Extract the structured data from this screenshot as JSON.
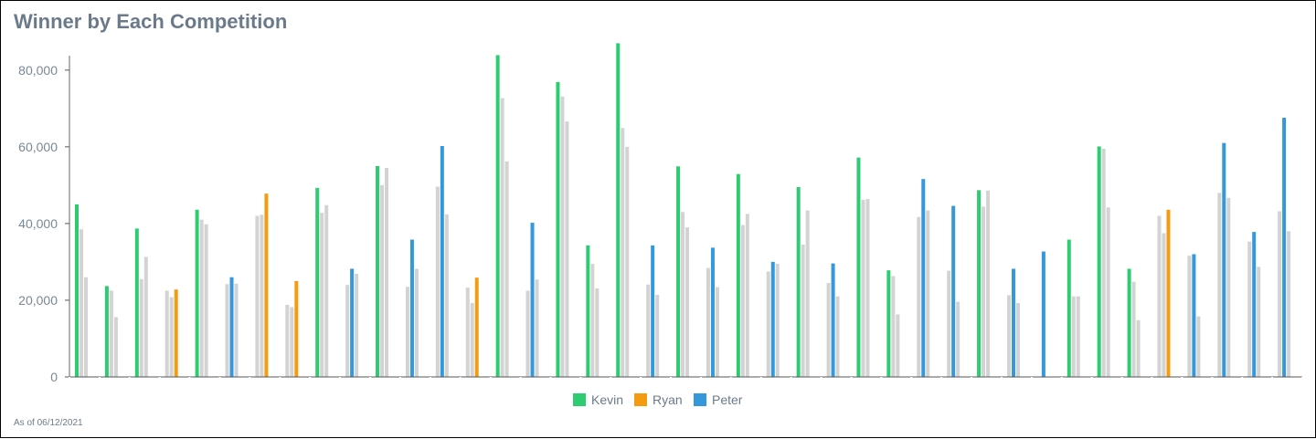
{
  "title": "Winner by Each Competition",
  "footnote": "As of 06/12/2021",
  "chart_data": {
    "type": "bar",
    "title": "Winner by Each Competition",
    "ylim": [
      0,
      90000
    ],
    "y_ticks": [
      0,
      20000,
      40000,
      60000,
      80000
    ],
    "y_tick_labels": [
      "0",
      "20,000",
      "40,000",
      "60,000",
      "80,000"
    ],
    "grid": false,
    "legend_position": "bottom-center",
    "legend": [
      {
        "name": "Kevin",
        "color": "#2ecc71"
      },
      {
        "name": "Ryan",
        "color": "#f39c12"
      },
      {
        "name": "Peter",
        "color": "#3498db"
      }
    ],
    "others_color": "#d3d3d3",
    "groups": [
      {
        "values": [
          45000,
          38500,
          26000
        ],
        "winner": "Kevin"
      },
      {
        "values": [
          23700,
          22500,
          15600
        ],
        "winner": "Kevin"
      },
      {
        "values": [
          38700,
          25500,
          31300
        ],
        "winner": "Kevin"
      },
      {
        "values": [
          22500,
          20800,
          22800
        ],
        "winner": "Ryan"
      },
      {
        "values": [
          43600,
          41000,
          39800
        ],
        "winner": "Kevin"
      },
      {
        "values": [
          24200,
          26000,
          24300
        ],
        "winner": "Peter"
      },
      {
        "values": [
          42000,
          42300,
          47800
        ],
        "winner": "Ryan"
      },
      {
        "values": [
          18800,
          18200,
          25000
        ],
        "winner": "Ryan"
      },
      {
        "values": [
          49300,
          42800,
          44800
        ],
        "winner": "Kevin"
      },
      {
        "values": [
          24000,
          28200,
          26900
        ],
        "winner": "Peter"
      },
      {
        "values": [
          55000,
          50000,
          54500
        ],
        "winner": "Kevin"
      },
      {
        "values": [
          23500,
          35800,
          28200
        ],
        "winner": "Peter"
      },
      {
        "values": [
          49600,
          60200,
          42400
        ],
        "winner": "Peter"
      },
      {
        "values": [
          23300,
          19300,
          25900
        ],
        "winner": "Ryan"
      },
      {
        "values": [
          83900,
          72700,
          56200
        ],
        "winner": "Kevin"
      },
      {
        "values": [
          22500,
          40200,
          25400
        ],
        "winner": "Peter"
      },
      {
        "values": [
          76900,
          73100,
          66600
        ],
        "winner": "Kevin"
      },
      {
        "values": [
          34300,
          29500,
          23100
        ],
        "winner": "Kevin"
      },
      {
        "values": [
          87000,
          64900,
          60000
        ],
        "winner": "Kevin"
      },
      {
        "values": [
          24100,
          34300,
          21400
        ],
        "winner": "Peter"
      },
      {
        "values": [
          54900,
          43000,
          39000
        ],
        "winner": "Kevin"
      },
      {
        "values": [
          28400,
          33700,
          23400
        ],
        "winner": "Peter"
      },
      {
        "values": [
          52900,
          39600,
          42500
        ],
        "winner": "Kevin"
      },
      {
        "values": [
          27500,
          30000,
          29500
        ],
        "winner": "Peter"
      },
      {
        "values": [
          49500,
          34500,
          43400
        ],
        "winner": "Kevin"
      },
      {
        "values": [
          24500,
          29600,
          21000
        ],
        "winner": "Peter"
      },
      {
        "values": [
          57200,
          46200,
          46400
        ],
        "winner": "Kevin"
      },
      {
        "values": [
          27800,
          26300,
          16300
        ],
        "winner": "Kevin"
      },
      {
        "values": [
          41700,
          51600,
          43400
        ],
        "winner": "Peter"
      },
      {
        "values": [
          27700,
          44600,
          19600
        ],
        "winner": "Peter"
      },
      {
        "values": [
          48700,
          44400,
          48600
        ],
        "winner": "Kevin"
      },
      {
        "values": [
          21300,
          28200,
          19300
        ],
        "winner": "Peter"
      },
      {
        "values": [
          0,
          32700,
          0
        ],
        "winner": "Peter"
      },
      {
        "values": [
          35800,
          21000,
          21000
        ],
        "winner": "Kevin"
      },
      {
        "values": [
          60100,
          59500,
          44200
        ],
        "winner": "Kevin"
      },
      {
        "values": [
          28200,
          24800,
          14800
        ],
        "winner": "Kevin"
      },
      {
        "values": [
          42000,
          37500,
          43600
        ],
        "winner": "Ryan"
      },
      {
        "values": [
          31600,
          32000,
          15800
        ],
        "winner": "Peter"
      },
      {
        "values": [
          48000,
          61000,
          46700
        ],
        "winner": "Peter"
      },
      {
        "values": [
          35300,
          37800,
          28700
        ],
        "winner": "Peter"
      },
      {
        "values": [
          43200,
          67600,
          38000
        ],
        "winner": "Peter"
      }
    ]
  }
}
